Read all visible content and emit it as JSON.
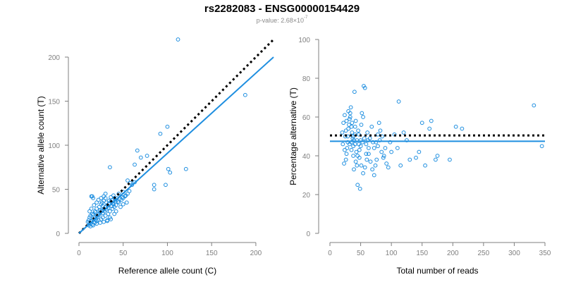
{
  "header": {
    "title": "rs2282083 - ENSG00000154429",
    "pvalue_prefix": "p-value: 2.68×10",
    "pvalue_exponent": "-7"
  },
  "colors": {
    "points": "#1f8fe0",
    "fit_line": "#1f8fe0",
    "reference_line": "#000000",
    "axis": "#7f7f7f",
    "tick_label": "#808080"
  },
  "chart_data": [
    {
      "type": "scatter",
      "title": "",
      "xlabel": "Reference allele count (C)",
      "ylabel": "Alternative allele count (T)",
      "xlim": [
        0,
        220
      ],
      "ylim": [
        0,
        220
      ],
      "xticks": [
        0,
        50,
        100,
        150,
        200
      ],
      "yticks": [
        0,
        50,
        100,
        150,
        200
      ],
      "grid": false,
      "fit_line": {
        "x": [
          0,
          220
        ],
        "y": [
          0,
          200
        ],
        "style": "solid"
      },
      "reference_line": {
        "x": [
          0,
          220
        ],
        "y": [
          0,
          220
        ],
        "style": "dotted"
      },
      "points": [
        [
          112,
          220
        ],
        [
          188,
          157
        ],
        [
          100,
          121
        ],
        [
          92,
          113
        ],
        [
          77,
          88
        ],
        [
          70,
          86
        ],
        [
          66,
          94
        ],
        [
          63,
          78
        ],
        [
          101,
          73
        ],
        [
          103,
          69
        ],
        [
          121,
          73
        ],
        [
          98,
          55
        ],
        [
          85,
          55
        ],
        [
          85,
          50
        ],
        [
          63,
          58
        ],
        [
          60,
          55
        ],
        [
          55,
          60
        ],
        [
          58,
          57
        ],
        [
          50,
          47
        ],
        [
          45,
          45
        ],
        [
          43,
          40
        ],
        [
          41,
          37
        ],
        [
          38,
          34
        ],
        [
          35,
          75
        ],
        [
          30,
          40
        ],
        [
          28,
          37
        ],
        [
          26,
          35
        ],
        [
          25,
          33
        ],
        [
          23,
          30
        ],
        [
          20,
          28
        ],
        [
          18,
          25
        ],
        [
          15,
          22
        ],
        [
          13,
          20
        ],
        [
          12,
          18
        ],
        [
          14,
          42
        ],
        [
          15,
          42
        ],
        [
          16,
          40
        ],
        [
          11,
          15
        ],
        [
          10,
          13
        ],
        [
          12,
          12
        ],
        [
          14,
          14
        ],
        [
          16,
          16
        ],
        [
          18,
          18
        ],
        [
          20,
          20
        ],
        [
          22,
          22
        ],
        [
          24,
          24
        ],
        [
          26,
          26
        ],
        [
          28,
          28
        ],
        [
          30,
          30
        ],
        [
          32,
          32
        ],
        [
          34,
          34
        ],
        [
          36,
          36
        ],
        [
          38,
          38
        ],
        [
          40,
          40
        ],
        [
          15,
          10
        ],
        [
          18,
          12
        ],
        [
          20,
          14
        ],
        [
          22,
          15
        ],
        [
          25,
          16
        ],
        [
          27,
          18
        ],
        [
          30,
          20
        ],
        [
          33,
          22
        ],
        [
          35,
          25
        ],
        [
          38,
          28
        ],
        [
          40,
          30
        ],
        [
          42,
          32
        ],
        [
          45,
          35
        ],
        [
          48,
          38
        ],
        [
          50,
          40
        ],
        [
          52,
          42
        ],
        [
          55,
          45
        ],
        [
          32,
          15
        ],
        [
          35,
          18
        ],
        [
          40,
          22
        ],
        [
          42,
          25
        ],
        [
          47,
          30
        ],
        [
          50,
          33
        ],
        [
          54,
          35
        ],
        [
          12,
          25
        ],
        [
          14,
          28
        ],
        [
          17,
          32
        ],
        [
          20,
          35
        ],
        [
          22,
          38
        ],
        [
          25,
          40
        ],
        [
          28,
          42
        ],
        [
          30,
          45
        ],
        [
          13,
          11
        ],
        [
          17,
          13
        ],
        [
          19,
          16
        ],
        [
          21,
          19
        ],
        [
          23,
          21
        ],
        [
          27,
          23
        ],
        [
          29,
          25
        ],
        [
          31,
          27
        ],
        [
          33,
          29
        ],
        [
          37,
          31
        ],
        [
          39,
          33
        ],
        [
          44,
          36
        ],
        [
          46,
          39
        ],
        [
          49,
          41
        ],
        [
          53,
          43
        ],
        [
          57,
          48
        ],
        [
          16,
          21
        ],
        [
          19,
          24
        ],
        [
          24,
          26
        ],
        [
          27,
          31
        ],
        [
          31,
          35
        ],
        [
          34,
          37
        ],
        [
          36,
          41
        ],
        [
          39,
          43
        ],
        [
          11,
          9
        ],
        [
          13,
          8
        ],
        [
          16,
          9
        ],
        [
          20,
          11
        ],
        [
          24,
          12
        ],
        [
          28,
          13
        ],
        [
          32,
          14
        ],
        [
          36,
          16
        ]
      ]
    },
    {
      "type": "scatter",
      "title": "",
      "xlabel": "Total number of reads",
      "ylabel": "Percentage alternative (T)",
      "xlim": [
        0,
        350
      ],
      "ylim": [
        0,
        100
      ],
      "xticks": [
        0,
        50,
        100,
        150,
        200,
        250,
        300,
        350
      ],
      "yticks": [
        0,
        20,
        40,
        60,
        80,
        100
      ],
      "grid": false,
      "fit_line": {
        "x": [
          0,
          350
        ],
        "y": [
          47.5,
          47.5
        ],
        "style": "solid"
      },
      "reference_line": {
        "x": [
          0,
          350
        ],
        "y": [
          50.5,
          50.5
        ],
        "style": "dotted"
      },
      "points": [
        [
          332,
          66
        ],
        [
          345,
          45
        ],
        [
          215,
          54
        ],
        [
          205,
          55
        ],
        [
          195,
          38
        ],
        [
          175,
          40
        ],
        [
          172,
          38
        ],
        [
          165,
          58
        ],
        [
          162,
          54
        ],
        [
          155,
          35
        ],
        [
          150,
          57
        ],
        [
          145,
          42
        ],
        [
          140,
          39
        ],
        [
          125,
          48
        ],
        [
          120,
          52
        ],
        [
          112,
          68
        ],
        [
          105,
          51
        ],
        [
          100,
          42
        ],
        [
          98,
          47
        ],
        [
          95,
          34
        ],
        [
          92,
          36
        ],
        [
          90,
          44
        ],
        [
          88,
          40
        ],
        [
          85,
          50
        ],
        [
          82,
          53
        ],
        [
          80,
          57
        ],
        [
          78,
          45
        ],
        [
          76,
          38
        ],
        [
          74,
          35
        ],
        [
          72,
          30
        ],
        [
          70,
          47
        ],
        [
          68,
          55
        ],
        [
          65,
          49
        ],
        [
          63,
          44
        ],
        [
          61,
          52
        ],
        [
          59,
          41
        ],
        [
          57,
          75
        ],
        [
          55,
          76
        ],
        [
          54,
          60
        ],
        [
          52,
          62
        ],
        [
          51,
          56
        ],
        [
          50,
          48
        ],
        [
          49,
          23
        ],
        [
          48,
          39
        ],
        [
          47,
          46
        ],
        [
          46,
          53
        ],
        [
          45,
          25
        ],
        [
          44,
          35
        ],
        [
          43,
          42
        ],
        [
          42,
          58
        ],
        [
          41,
          51
        ],
        [
          40,
          73
        ],
        [
          39,
          33
        ],
        [
          38,
          45
        ],
        [
          37,
          49
        ],
        [
          36,
          52
        ],
        [
          35,
          55
        ],
        [
          34,
          65
        ],
        [
          33,
          62
        ],
        [
          32,
          59
        ],
        [
          31,
          56
        ],
        [
          30,
          54
        ],
        [
          29,
          47
        ],
        [
          28,
          44
        ],
        [
          27,
          41
        ],
        [
          26,
          38
        ],
        [
          25,
          50
        ],
        [
          24,
          43
        ],
        [
          23,
          36
        ],
        [
          22,
          57
        ],
        [
          21,
          46
        ],
        [
          20,
          52
        ],
        [
          24,
          61
        ],
        [
          27,
          58
        ],
        [
          30,
          63
        ],
        [
          33,
          60
        ],
        [
          36,
          57
        ],
        [
          39,
          48
        ],
        [
          42,
          37
        ],
        [
          45,
          40
        ],
        [
          48,
          43
        ],
        [
          51,
          35
        ],
        [
          54,
          31
        ],
        [
          57,
          34
        ],
        [
          60,
          38
        ],
        [
          63,
          41
        ],
        [
          66,
          37
        ],
        [
          69,
          33
        ],
        [
          72,
          44
        ],
        [
          75,
          47
        ],
        [
          78,
          51
        ],
        [
          81,
          48
        ],
        [
          84,
          42
        ],
        [
          87,
          39
        ],
        [
          35,
          47
        ],
        [
          38,
          50
        ],
        [
          41,
          46
        ],
        [
          44,
          48
        ],
        [
          47,
          51
        ],
        [
          50,
          45
        ],
        [
          53,
          47
        ],
        [
          56,
          49
        ],
        [
          59,
          46
        ],
        [
          62,
          48
        ],
        [
          26,
          53
        ],
        [
          29,
          50
        ],
        [
          32,
          46
        ],
        [
          35,
          43
        ],
        [
          38,
          40
        ],
        [
          41,
          55
        ],
        [
          130,
          38
        ],
        [
          110,
          44
        ],
        [
          115,
          35
        ]
      ]
    }
  ]
}
